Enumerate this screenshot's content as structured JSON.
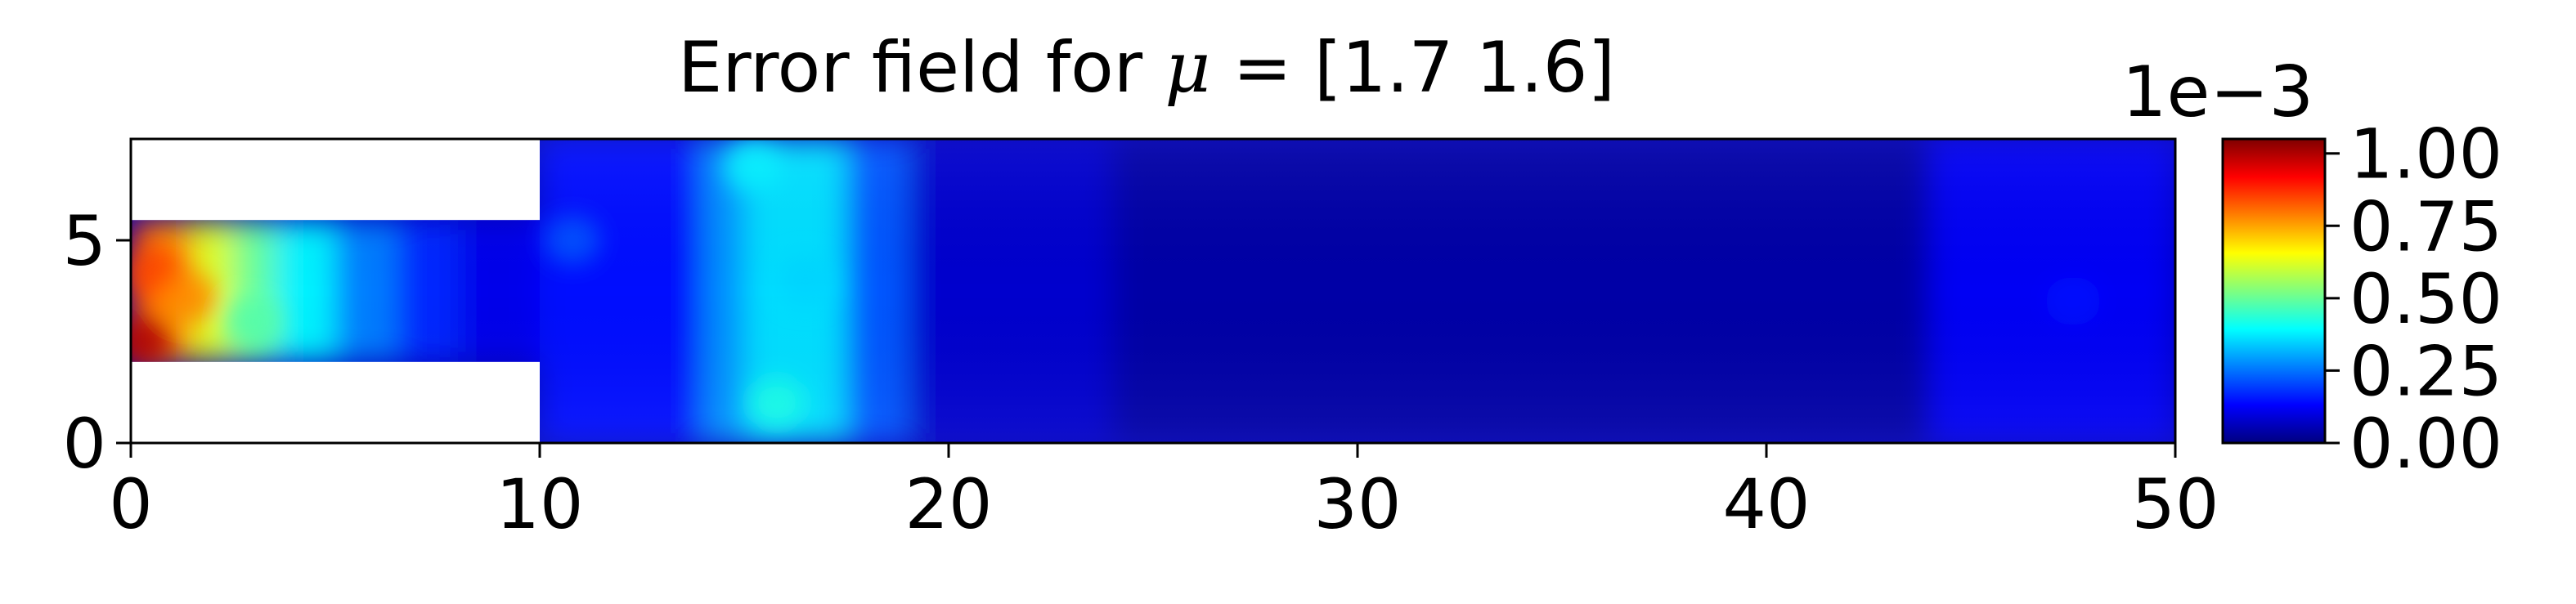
{
  "chart_data": {
    "type": "heatmap",
    "title_prefix": "Error field for ",
    "title_symbol": "μ",
    "title_suffix": " = [1.7 1.6]",
    "xlabel": "",
    "ylabel": "",
    "xlim": [
      0,
      50
    ],
    "ylim": [
      0,
      7.5
    ],
    "x_ticks": [
      0,
      10,
      20,
      30,
      40,
      50
    ],
    "x_tick_labels": [
      "0",
      "10",
      "20",
      "30",
      "40",
      "50"
    ],
    "y_ticks": [
      0,
      5
    ],
    "y_tick_labels": [
      "0",
      "5"
    ],
    "grid": false,
    "colormap": "jet",
    "colorbar": {
      "range": [
        0,
        1.05
      ],
      "scale_label": "1e−3",
      "ticks": [
        0,
        0.25,
        0.5,
        0.75,
        1.0
      ],
      "tick_labels": [
        "0.00",
        "0.25",
        "0.50",
        "0.75",
        "1.00"
      ],
      "stops": [
        "#00007f",
        "#0000ff",
        "#007fff",
        "#00ffff",
        "#7fff7f",
        "#ffff00",
        "#ff7f00",
        "#ff0000",
        "#7f0000"
      ]
    },
    "domain": {
      "inlet_channel": {
        "x": [
          0,
          10
        ],
        "y": [
          2,
          5.5
        ]
      },
      "main_chamber": {
        "x": [
          10,
          50
        ],
        "y": [
          0,
          7.5
        ]
      }
    },
    "error_regions": [
      {
        "x": [
          0,
          0.4
        ],
        "y": [
          2,
          5.5
        ],
        "value": 0.9
      },
      {
        "x": [
          0.4,
          1.5
        ],
        "y": [
          2,
          5.5
        ],
        "value": 0.78
      },
      {
        "x": [
          1.5,
          2.5
        ],
        "y": [
          2,
          5.5
        ],
        "value": 0.62
      },
      {
        "x": [
          2.5,
          3.5
        ],
        "y": [
          2,
          5.5
        ],
        "value": 0.5
      },
      {
        "x": [
          3.5,
          5
        ],
        "y": [
          2,
          5.5
        ],
        "value": 0.38
      },
      {
        "x": [
          5,
          6.5
        ],
        "y": [
          2,
          5.5
        ],
        "value": 0.26
      },
      {
        "x": [
          6.5,
          8
        ],
        "y": [
          2,
          5.5
        ],
        "value": 0.17
      },
      {
        "x": [
          8,
          10
        ],
        "y": [
          2,
          5.5
        ],
        "value": 0.11
      },
      {
        "x": [
          10,
          14
        ],
        "y": [
          0,
          7.5
        ],
        "value": 0.14
      },
      {
        "x": [
          14,
          15
        ],
        "y": [
          0,
          7.5
        ],
        "value": 0.28
      },
      {
        "x": [
          15,
          17.5
        ],
        "y": [
          0,
          7.5
        ],
        "value": 0.36
      },
      {
        "x": [
          17.5,
          19
        ],
        "y": [
          0,
          7.5
        ],
        "value": 0.22
      },
      {
        "x": [
          19,
          24
        ],
        "y": [
          0,
          7.5
        ],
        "value": 0.08
      },
      {
        "x": [
          24,
          44
        ],
        "y": [
          0,
          7.5
        ],
        "value": 0.04
      },
      {
        "x": [
          44,
          50
        ],
        "y": [
          0,
          7.5
        ],
        "value": 0.12
      }
    ],
    "hotspots": [
      {
        "x": 0.3,
        "y": 2.5,
        "value": 1.0
      },
      {
        "x": 0.6,
        "y": 4.2,
        "value": 0.85
      },
      {
        "x": 1.4,
        "y": 3.6,
        "value": 0.78
      },
      {
        "x": 3.0,
        "y": 3.0,
        "value": 0.48
      },
      {
        "x": 15.8,
        "y": 1.0,
        "value": 0.42
      },
      {
        "x": 15.2,
        "y": 6.8,
        "value": 0.38
      },
      {
        "x": 16.5,
        "y": 4.0,
        "value": 0.35
      },
      {
        "x": 10.8,
        "y": 5.0,
        "value": 0.22
      },
      {
        "x": 47.5,
        "y": 3.5,
        "value": 0.14
      }
    ]
  }
}
